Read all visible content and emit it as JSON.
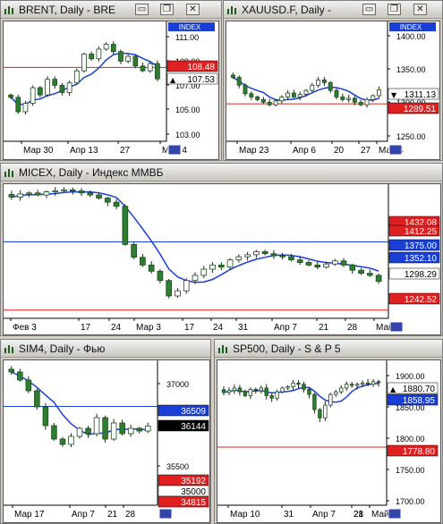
{
  "windows": [
    {
      "id": "brent",
      "title": "BRENT, Daily - BRE",
      "badge": "INDEX",
      "y_ticks": [
        "111.00",
        "109.00",
        "107.00",
        "105.00",
        "103.00"
      ],
      "price_labels": [
        {
          "text": "108.48",
          "color": "#e02020",
          "text_color": "#ffffff"
        },
        {
          "text": "107.53",
          "color": "#ffffff",
          "text_color": "#000000",
          "arrow": "▲"
        }
      ],
      "x_ticks": [
        "Мар 30",
        "Апр 13",
        "27",
        "Май 4"
      ]
    },
    {
      "id": "xauusd",
      "title": "XAUUSD.F, Daily - ",
      "badge": "INDEX",
      "y_ticks": [
        "1400.00",
        "1350.00",
        "1300.00",
        "1250.00"
      ],
      "price_labels": [
        {
          "text": "1311.13",
          "color": "#ffffff",
          "text_color": "#000000",
          "arrow": "▼"
        },
        {
          "text": "1289.51",
          "color": "#e02020",
          "text_color": "#ffffff"
        }
      ],
      "x_ticks": [
        "Мар 23",
        "Апр 6",
        "20",
        "27",
        "Май 4"
      ]
    },
    {
      "id": "micex",
      "title": "MICEX, Daily - Индекс ММВБ",
      "badge": "",
      "y_ticks": [],
      "price_labels": [
        {
          "text": "1432.08",
          "color": "#e02020",
          "text_color": "#ffffff"
        },
        {
          "text": "1412.25",
          "color": "#e02020",
          "text_color": "#ffffff"
        },
        {
          "text": "1375.00",
          "color": "#1a3fd6",
          "text_color": "#ffffff"
        },
        {
          "text": "1352.10",
          "color": "#1a3fd6",
          "text_color": "#ffffff"
        },
        {
          "text": "1298.29",
          "color": "#ffffff",
          "text_color": "#000000"
        },
        {
          "text": "1242.52",
          "color": "#e02020",
          "text_color": "#ffffff"
        }
      ],
      "x_ticks": [
        "Фев 3",
        "17",
        "24",
        "Мар 3",
        "17",
        "24",
        "31",
        "Апр 7",
        "21",
        "28",
        "Май 5"
      ]
    },
    {
      "id": "sim4",
      "title": "SIM4, Daily - Фью",
      "badge": "",
      "y_ticks": [
        "37000",
        "35500"
      ],
      "price_labels": [
        {
          "text": "36509",
          "color": "#1a3fd6",
          "text_color": "#ffffff"
        },
        {
          "text": "36144",
          "color": "#000000",
          "text_color": "#ffffff"
        },
        {
          "text": "35192",
          "color": "#e02020",
          "text_color": "#ffffff"
        },
        {
          "text": "35000",
          "color": "#ffffff",
          "text_color": "#000000"
        },
        {
          "text": "34815",
          "color": "#e02020",
          "text_color": "#ffffff"
        }
      ],
      "x_ticks": [
        "Мар 17",
        "Апр 7",
        "21",
        "28"
      ]
    },
    {
      "id": "sp500",
      "title": "SP500, Daily - S & P 5",
      "badge": "",
      "y_ticks": [
        "1900.00",
        "1850.00",
        "1800.00",
        "1750.00",
        "1700.00"
      ],
      "price_labels": [
        {
          "text": "1880.70",
          "color": "#ffffff",
          "text_color": "#000000",
          "arrow": "▲"
        },
        {
          "text": "1858.95",
          "color": "#1a3fd6",
          "text_color": "#ffffff"
        },
        {
          "text": "1778.80",
          "color": "#e02020",
          "text_color": "#ffffff"
        }
      ],
      "x_ticks": [
        "Мар 10",
        "31",
        "Апр 7",
        "21",
        "28",
        "Май 5"
      ]
    }
  ],
  "buttons": {
    "minimize": "▭",
    "restore": "❐",
    "close": "✕"
  },
  "chart_data": [
    {
      "type": "candlestick",
      "title": "BRENT, Daily - BRE",
      "ylim": [
        102.5,
        112
      ],
      "close": [
        106.0,
        104.8,
        105.5,
        106.8,
        106.2,
        107.5,
        107.0,
        106.4,
        107.2,
        108.2,
        109.6,
        109.2,
        110.0,
        110.4,
        109.8,
        109.0,
        109.4,
        108.6,
        108.2,
        108.8,
        107.53
      ],
      "lines": [
        {
          "name": "",
          "color": "#e02020",
          "value": 108.48
        }
      ]
    },
    {
      "type": "candlestick",
      "title": "XAUUSD.F, Daily - ",
      "ylim": [
        1235,
        1410
      ],
      "close": [
        1330,
        1318,
        1305,
        1300,
        1296,
        1292,
        1288,
        1294,
        1300,
        1306,
        1300,
        1304,
        1310,
        1318,
        1326,
        1322,
        1310,
        1300,
        1296,
        1298,
        1292,
        1288,
        1296,
        1302,
        1311.13
      ],
      "lines": [
        {
          "name": "",
          "color": "#e02020",
          "value": 1289.51
        }
      ]
    },
    {
      "type": "candlestick",
      "title": "MICEX, Daily - Индекс ММВБ",
      "ylim": [
        1230,
        1480
      ],
      "close": [
        1462,
        1468,
        1470,
        1466,
        1472,
        1474,
        1476,
        1474,
        1470,
        1466,
        1460,
        1452,
        1444,
        1370,
        1345,
        1330,
        1318,
        1300,
        1270,
        1280,
        1300,
        1310,
        1322,
        1330,
        1326,
        1340,
        1346,
        1350,
        1356,
        1352,
        1348,
        1346,
        1340,
        1335,
        1330,
        1326,
        1332,
        1338,
        1330,
        1320,
        1314,
        1310,
        1298.29
      ],
      "lines": [
        {
          "name": "",
          "color": "#1a3fd6",
          "value": 1375.0
        },
        {
          "name": "",
          "color": "#e02020",
          "value": 1242.52
        }
      ]
    },
    {
      "type": "candlestick",
      "title": "SIM4, Daily - Фью",
      "ylim": [
        34700,
        37300
      ],
      "close": [
        37150,
        37000,
        36800,
        36500,
        36150,
        35900,
        35800,
        35950,
        36100,
        36000,
        36300,
        35900,
        36200,
        36000,
        36100,
        36050,
        36144
      ],
      "lines": [
        {
          "name": "",
          "color": "#1a3fd6",
          "value": 36509
        }
      ]
    },
    {
      "type": "candlestick",
      "title": "SP500, Daily - S & P 5",
      "ylim": [
        1690,
        1910
      ],
      "close": [
        1865,
        1868,
        1872,
        1866,
        1860,
        1870,
        1868,
        1872,
        1860,
        1856,
        1866,
        1872,
        1874,
        1880,
        1878,
        1870,
        1862,
        1838,
        1825,
        1845,
        1862,
        1866,
        1872,
        1878,
        1876,
        1878,
        1880,
        1878,
        1882,
        1880.7
      ],
      "lines": [
        {
          "name": "",
          "color": "#e02020",
          "value": 1778.8
        }
      ]
    }
  ]
}
